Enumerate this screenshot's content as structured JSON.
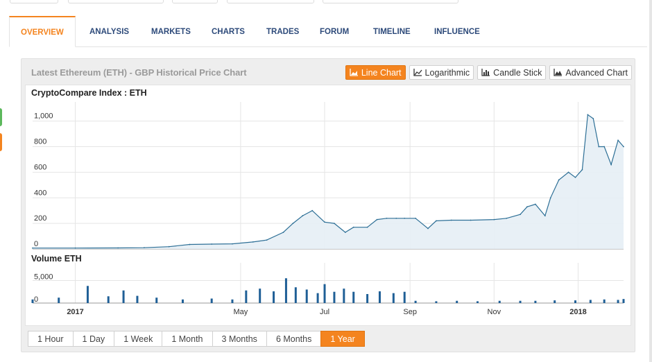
{
  "tabs": [
    {
      "label": "OVERVIEW",
      "active": true
    },
    {
      "label": "ANALYSIS"
    },
    {
      "label": "MARKETS"
    },
    {
      "label": "CHARTS"
    },
    {
      "label": "TRADES"
    },
    {
      "label": "FORUM"
    },
    {
      "label": "TIMELINE"
    },
    {
      "label": "INFLUENCE"
    }
  ],
  "panel": {
    "title": "Latest Ethereum (ETH) - GBP Historical Price Chart",
    "chart_buttons": [
      {
        "label": "Line Chart",
        "icon": "area-chart-icon",
        "active": true
      },
      {
        "label": "Logarithmic",
        "icon": "line-chart-icon"
      },
      {
        "label": "Candle Stick",
        "icon": "bar-chart-icon"
      },
      {
        "label": "Advanced Chart",
        "icon": "mountain-chart-icon"
      }
    ],
    "range_buttons": [
      {
        "label": "1 Hour"
      },
      {
        "label": "1 Day"
      },
      {
        "label": "1 Week"
      },
      {
        "label": "1 Month"
      },
      {
        "label": "3 Months"
      },
      {
        "label": "6 Months"
      },
      {
        "label": "1 Year",
        "active": true
      }
    ]
  },
  "colors": {
    "accent": "#f4841f",
    "line": "#2d6f96",
    "fill": "#e6eef5",
    "volume": "#1f5f96"
  },
  "chart_data": [
    {
      "type": "area",
      "title": "CryptoCompare Index : ETH",
      "ylim": [
        0,
        1150
      ],
      "yticks": [
        0,
        200,
        400,
        600,
        800,
        1000
      ],
      "ytick_labels": [
        "0",
        "200",
        "400",
        "600",
        "800",
        "1,000"
      ],
      "x_tick_labels": [
        "2017",
        "May",
        "Jul",
        "Sep",
        "Nov",
        "2018"
      ],
      "x_label_bold": [
        true,
        false,
        false,
        false,
        false,
        true
      ],
      "x": [
        "2016-12-01",
        "2017-01-01",
        "2017-02-01",
        "2017-02-20",
        "2017-03-10",
        "2017-03-25",
        "2017-04-10",
        "2017-04-25",
        "2017-05-10",
        "2017-05-20",
        "2017-06-01",
        "2017-06-08",
        "2017-06-15",
        "2017-06-22",
        "2017-07-01",
        "2017-07-08",
        "2017-07-16",
        "2017-07-22",
        "2017-08-01",
        "2017-08-08",
        "2017-08-15",
        "2017-08-22",
        "2017-08-28",
        "2017-09-05",
        "2017-09-14",
        "2017-09-20",
        "2017-10-01",
        "2017-10-15",
        "2017-11-01",
        "2017-11-10",
        "2017-11-20",
        "2017-11-25",
        "2017-12-01",
        "2017-12-08",
        "2017-12-12",
        "2017-12-18",
        "2017-12-25",
        "2017-12-30",
        "2018-01-04",
        "2018-01-08",
        "2018-01-12",
        "2018-01-16",
        "2018-01-20",
        "2018-01-25",
        "2018-01-30",
        "2018-02-03"
      ],
      "series": [
        {
          "values": [
            7,
            7,
            8,
            10,
            18,
            35,
            38,
            40,
            55,
            70,
            130,
            200,
            260,
            300,
            210,
            200,
            130,
            170,
            170,
            230,
            240,
            240,
            240,
            240,
            160,
            220,
            225,
            225,
            230,
            240,
            270,
            330,
            350,
            260,
            400,
            540,
            600,
            560,
            620,
            1050,
            1020,
            800,
            800,
            660,
            850,
            800
          ]
        }
      ]
    },
    {
      "type": "bar",
      "title": "Volume ETH",
      "ylim": [
        0,
        8000
      ],
      "yticks": [
        0,
        5000
      ],
      "ytick_labels": [
        "0",
        "5,000"
      ],
      "x": [
        "2016-12-01",
        "2016-12-20",
        "2017-01-10",
        "2017-01-25",
        "2017-02-05",
        "2017-02-15",
        "2017-03-01",
        "2017-03-20",
        "2017-04-10",
        "2017-04-25",
        "2017-05-05",
        "2017-05-15",
        "2017-05-25",
        "2017-06-03",
        "2017-06-10",
        "2017-06-18",
        "2017-06-26",
        "2017-07-01",
        "2017-07-08",
        "2017-07-15",
        "2017-07-22",
        "2017-08-01",
        "2017-08-10",
        "2017-08-20",
        "2017-08-28",
        "2017-09-05",
        "2017-09-20",
        "2017-10-05",
        "2017-10-20",
        "2017-11-05",
        "2017-11-20",
        "2017-12-01",
        "2017-12-15",
        "2017-12-30",
        "2018-01-10",
        "2018-01-20",
        "2018-01-30",
        "2018-02-03"
      ],
      "values": [
        800,
        1200,
        3800,
        1500,
        2800,
        1600,
        1200,
        800,
        1000,
        800,
        2800,
        3200,
        2600,
        5500,
        3500,
        3000,
        2200,
        4200,
        2500,
        3200,
        2500,
        2000,
        2600,
        2200,
        2500,
        500,
        400,
        500,
        400,
        500,
        500,
        500,
        600,
        600,
        700,
        800,
        700,
        900
      ]
    }
  ]
}
